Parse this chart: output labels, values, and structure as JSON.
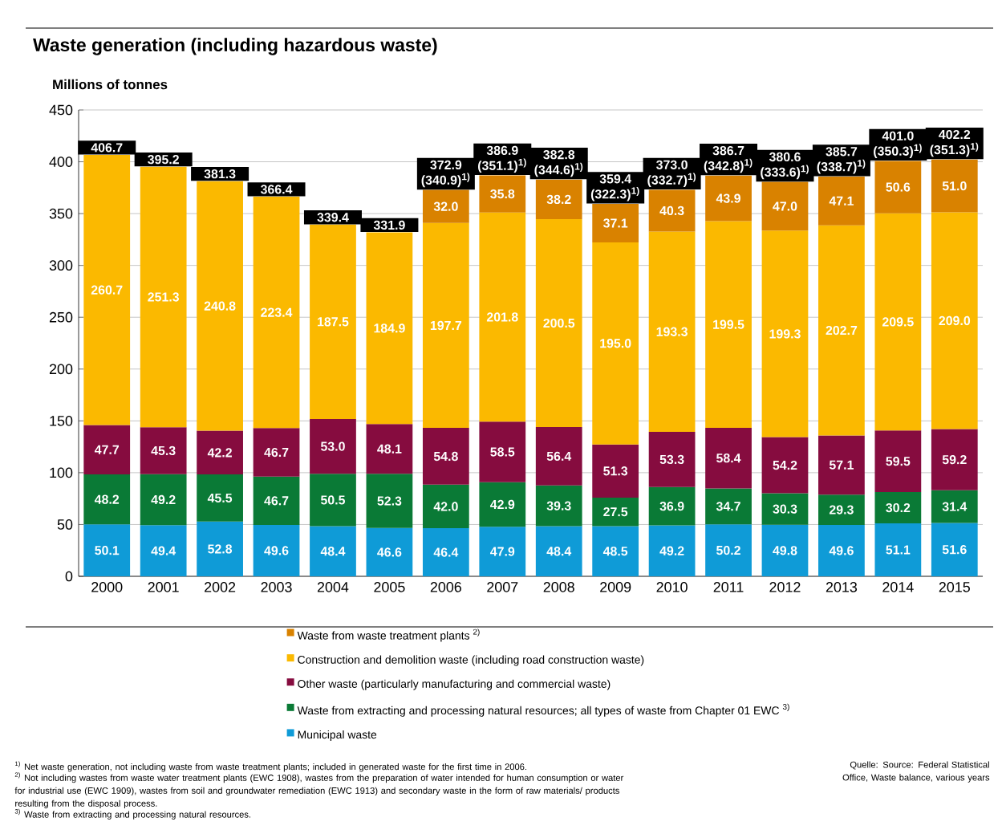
{
  "chart_data": {
    "type": "bar",
    "title": "Waste generation (including hazardous waste)",
    "ylabel": "Millions of tonnes",
    "categories": [
      "2000",
      "2001",
      "2002",
      "2003",
      "2004",
      "2005",
      "2006",
      "2007",
      "2008",
      "2009",
      "2010",
      "2011",
      "2012",
      "2013",
      "2014",
      "2015"
    ],
    "series": [
      {
        "name": "Municipal waste",
        "color": "#0f9bd7",
        "values": [
          50.1,
          49.4,
          52.8,
          49.6,
          48.4,
          46.6,
          46.4,
          47.9,
          48.4,
          48.5,
          49.2,
          50.2,
          49.8,
          49.6,
          51.1,
          51.6
        ],
        "value_labels": [
          "50.1",
          "49.4",
          "52.8",
          "49.6",
          "48.4",
          "46.6",
          "46.4",
          "47.9",
          "48.4",
          "48.5",
          "49.2",
          "50.2",
          "49.8",
          "49.6",
          "51.1",
          "51.6"
        ]
      },
      {
        "name": "Waste from extracting and processing natural resources; all types of waste from Chapter 01 EWC $^{3)}$",
        "color": "#0a7a36",
        "values": [
          48.2,
          49.2,
          45.5,
          46.7,
          50.5,
          52.3,
          42.0,
          42.9,
          39.3,
          27.5,
          36.9,
          34.7,
          30.3,
          29.3,
          30.2,
          31.4
        ],
        "value_labels": [
          "48.2",
          "49.2",
          "45.5",
          "46.7",
          "50.5",
          "52.3",
          "42.0",
          "42.9",
          "39.3",
          "27.5",
          "36.9",
          "34.7",
          "30.3",
          "29.3",
          "30.2",
          "31.4"
        ]
      },
      {
        "name": "Other waste (particularly manufacturing and commercial waste)",
        "color": "#860c3f",
        "values": [
          47.7,
          45.3,
          42.2,
          46.7,
          53.0,
          48.1,
          54.8,
          58.5,
          56.4,
          51.3,
          53.3,
          58.4,
          54.2,
          57.1,
          59.5,
          59.2
        ],
        "value_labels": [
          "47.7",
          "45.3",
          "42.2",
          "46.7",
          "53.0",
          "48.1",
          "54.8",
          "58.5",
          "56.4",
          "51.3",
          "53.3",
          "58.4",
          "54.2",
          "57.1",
          "59.5",
          "59.2"
        ]
      },
      {
        "name": "Construction and demolition waste (including road construction waste)",
        "color": "#fbb900",
        "values": [
          260.7,
          251.3,
          240.8,
          223.4,
          187.5,
          184.9,
          197.7,
          201.8,
          200.5,
          195.0,
          193.3,
          199.5,
          199.3,
          202.7,
          209.5,
          209.0
        ],
        "value_labels": [
          "260.7",
          "251.3",
          "240.8",
          "223.4",
          "187.5",
          "184.9",
          "197.7",
          "201.8",
          "200.5",
          "195.0",
          "193.3",
          "199.5",
          "199.3",
          "202.7",
          "209.5",
          "209.0"
        ]
      },
      {
        "name": "Waste from waste treatment plants $^{2)}$",
        "color": "#d98200",
        "values": [
          null,
          null,
          null,
          null,
          null,
          null,
          32.0,
          35.8,
          38.2,
          37.1,
          40.3,
          43.9,
          47.0,
          47.1,
          50.6,
          51.0
        ],
        "value_labels": [
          null,
          null,
          null,
          null,
          null,
          null,
          "32.0",
          "35.8",
          "38.2",
          "37.1",
          "40.3",
          "43.9",
          "47.0",
          "47.1",
          "50.6",
          "51.0"
        ]
      }
    ],
    "stacked": true,
    "totals": [
      "406.7",
      "395.2",
      "381.3",
      "366.4",
      "339.4",
      "331.9",
      "372.9 (340.9)$^{1)}$",
      "386.9 (351.1)$^{1)}$",
      "382.8 (344.6)$^{1)}$",
      "359.4 (322.3)$^{1)}$",
      "373.0 (332.7)$^{1)}$",
      "386.7 (342.8)$^{1)}$",
      "380.6 (333.6)$^{1)}$",
      "385.7 (338.7)$^{1)}$",
      "401.0 (350.3)$^{1)}$",
      "402.2 (351.3)$^{1)}$"
    ],
    "ylim": [
      0,
      450
    ],
    "yticks": [
      0,
      50,
      100,
      150,
      200,
      250,
      300,
      350,
      400,
      450
    ],
    "grid": "y",
    "legend": "bottom",
    "annotations": [
      "$^{1)}$ Net waste generation, not including waste from waste treatment plants; included in generated waste for the first time in 2006.",
      "$^{2)}$ Not including wastes from waste water treatment plants (EWC 1908), wastes from the preparation of water intended for human consumption or water for industrial use (EWC 1909), wastes from soil and groundwater remediation (EWC 1913) and secondary waste in the form of raw materials/ products resulting from the disposal process.",
      "$^{3)}$ Waste from extracting and processing natural resources.",
      "Quelle: Source: Federal Statistical Office, Waste balance, various years"
    ]
  }
}
